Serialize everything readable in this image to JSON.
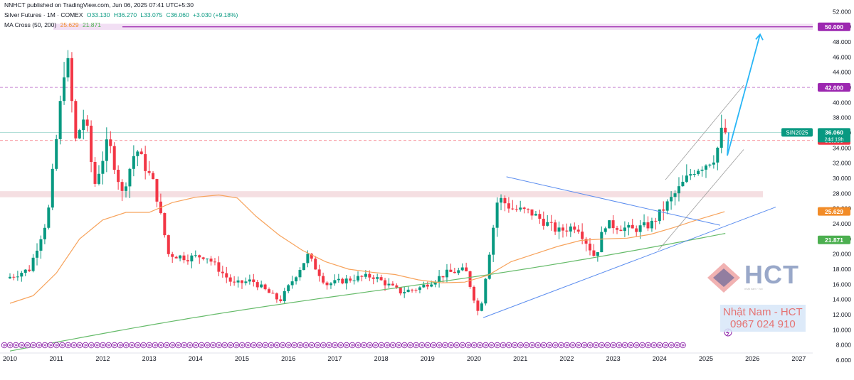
{
  "publish_line": "NNHCT published on TradingView.com, Jun 06, 2025 07:41 UTC+5:30",
  "symbol_line": {
    "name": "Silver Futures · 1M · COMEX",
    "open": "O33.130",
    "high": "H36.270",
    "low": "L33.075",
    "close": "C36.060",
    "change": "+3.030 (+9.18%)"
  },
  "ma_line": {
    "label": "MA Cross (50, 200)",
    "ma50": "25.629",
    "ma200": "21.871"
  },
  "watermark": {
    "brand": "HCT",
    "tagline": "nhật nam · hct",
    "contact_name": "Nhật Nam - HCT",
    "contact_phone": "0967 024 910"
  },
  "price_labels": {
    "symbol_tag": "SIN2025",
    "current_price": "36.060",
    "countdown": "24d 19h",
    "level_50": "50.000",
    "level_42": "42.000",
    "level_35": "35.000",
    "ma50": "25.629",
    "ma200": "21.871"
  },
  "colors": {
    "up": "#089981",
    "down": "#f23645",
    "ma50": "#f7a35c",
    "ma200": "#66bb6a",
    "resistance": "#9c27b0",
    "trend": "#5b8def",
    "projection": "#29b6f6",
    "zone": "#f3d9dd"
  },
  "chart_data": {
    "type": "candlestick",
    "title": "Silver Futures · 1M · COMEX",
    "x_axis_ticks": [
      "2010",
      "2011",
      "2012",
      "2013",
      "2014",
      "2015",
      "2016",
      "2017",
      "2018",
      "2019",
      "2020",
      "2021",
      "2022",
      "2023",
      "2024",
      "2025",
      "2026",
      "2027"
    ],
    "y_axis_ticks": [
      "52.000",
      "50.000",
      "48.000",
      "46.000",
      "44.000",
      "42.000",
      "40.000",
      "38.000",
      "36.000",
      "34.000",
      "32.000",
      "30.000",
      "28.000",
      "26.000",
      "24.000",
      "22.000",
      "20.000",
      "18.000",
      "16.000",
      "14.000",
      "12.000",
      "10.000",
      "8.000",
      "6.000"
    ],
    "y_range": [
      6,
      52
    ],
    "x_range": [
      2010.0,
      2028.0
    ],
    "candles_yearly_anchor": [
      [
        2010.0,
        16.8
      ],
      [
        2010.5,
        18.0
      ],
      [
        2010.9,
        25.0
      ],
      [
        2011.3,
        47.0
      ],
      [
        2011.5,
        35.0
      ],
      [
        2011.7,
        38.5
      ],
      [
        2011.9,
        29.0
      ],
      [
        2012.2,
        35.0
      ],
      [
        2012.5,
        28.0
      ],
      [
        2012.8,
        34.0
      ],
      [
        2013.2,
        29.0
      ],
      [
        2013.5,
        20.0
      ],
      [
        2013.9,
        19.5
      ],
      [
        2014.3,
        19.8
      ],
      [
        2014.9,
        16.0
      ],
      [
        2015.3,
        16.5
      ],
      [
        2015.9,
        13.8
      ],
      [
        2016.5,
        19.8
      ],
      [
        2016.9,
        16.0
      ],
      [
        2017.5,
        16.8
      ],
      [
        2017.9,
        17.1
      ],
      [
        2018.5,
        15.0
      ],
      [
        2018.9,
        15.5
      ],
      [
        2019.5,
        17.5
      ],
      [
        2019.9,
        17.9
      ],
      [
        2020.2,
        11.8
      ],
      [
        2020.6,
        27.5
      ],
      [
        2020.9,
        26.0
      ],
      [
        2021.3,
        25.5
      ],
      [
        2021.9,
        23.0
      ],
      [
        2022.3,
        23.8
      ],
      [
        2022.7,
        19.5
      ],
      [
        2022.9,
        24.0
      ],
      [
        2023.5,
        23.2
      ],
      [
        2023.9,
        23.9
      ],
      [
        2024.3,
        27.0
      ],
      [
        2024.8,
        31.0
      ],
      [
        2025.1,
        32.0
      ],
      [
        2025.3,
        33.0
      ],
      [
        2025.4,
        36.06
      ]
    ],
    "lines": [
      {
        "name": "MA Cross (50, 200) 50",
        "value": 25.629
      },
      {
        "name": "MA Cross (50, 200) 200",
        "value": 21.871
      }
    ],
    "horizontal_levels": [
      50.0,
      42.0,
      35.0
    ],
    "support_zone": [
      27.5,
      28.3
    ],
    "resistance_zone": [
      49.6,
      50.4
    ],
    "projection_target": 49.0,
    "grid": false,
    "legend": "top-left"
  }
}
